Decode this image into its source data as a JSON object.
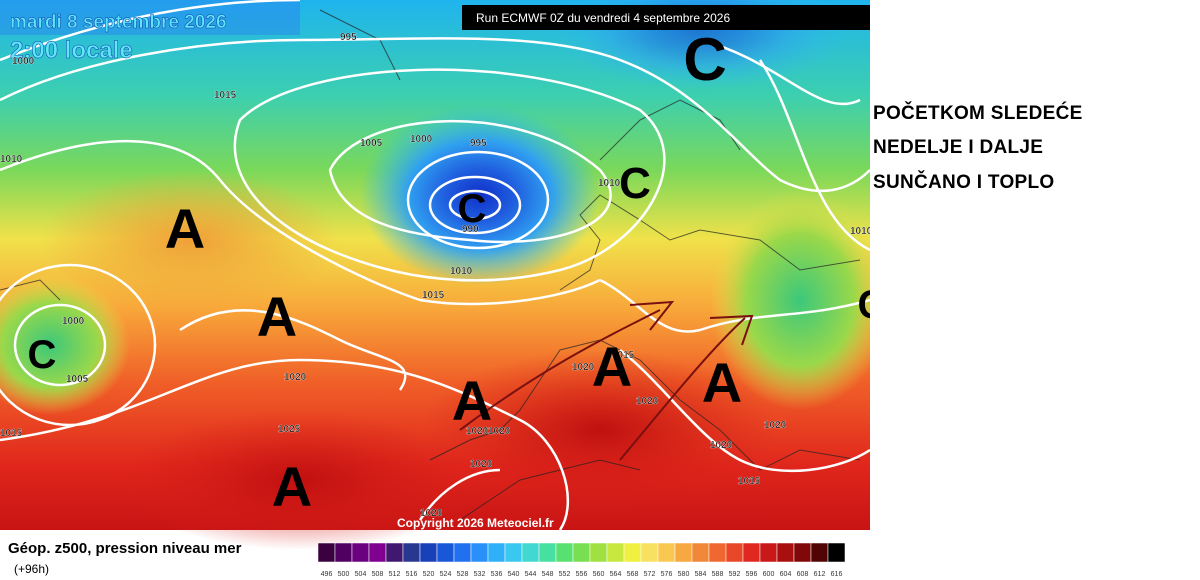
{
  "map": {
    "valid_date": "mardi 8 septembre 2026",
    "valid_time": "2:00 locale",
    "run": "Run ECMWF 0Z du vendredi 4 septembre 2026",
    "copyright": "Copyright 2026 Meteociel.fr",
    "isobar_labels": [
      "995",
      "1000",
      "1015",
      "1005",
      "1000",
      "995",
      "1010",
      "990",
      "1010",
      "1010",
      "1015",
      "1000",
      "1005",
      "1020",
      "1025",
      "1015",
      "1020",
      "1015",
      "1020",
      "1020",
      "1020",
      "1020",
      "1020",
      "1020",
      "1015",
      "1020",
      "1010"
    ],
    "systems": [
      "C",
      "C",
      "C",
      "C",
      "C",
      "A",
      "A",
      "A",
      "A",
      "A",
      "A"
    ]
  },
  "annotation": {
    "lines": [
      "POČETKOM SLEDEĆE",
      "NEDELJE I DALJE",
      "SUNČANO I TOPLO"
    ]
  },
  "legend": {
    "title": "Géop. z500, pression niveau mer",
    "subtitle": "(+96h)",
    "scale": [
      496,
      500,
      504,
      508,
      512,
      516,
      520,
      524,
      528,
      532,
      536,
      540,
      544,
      548,
      552,
      556,
      560,
      564,
      568,
      572,
      576,
      580,
      584,
      588,
      592,
      596,
      600,
      604,
      608,
      612,
      616
    ]
  }
}
